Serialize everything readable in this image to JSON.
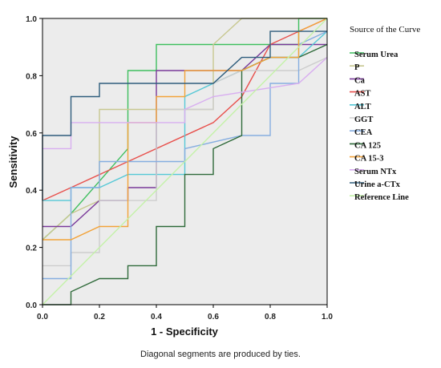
{
  "chart_data": {
    "type": "line",
    "title": "",
    "xlabel": "1 - Specificity",
    "ylabel": "Sensitivity",
    "xlim": [
      0,
      1
    ],
    "ylim": [
      0,
      1
    ],
    "x_ticks": [
      "0.0",
      "0.2",
      "0.4",
      "0.6",
      "0.8",
      "1.0"
    ],
    "y_ticks": [
      "0.0",
      "0.2",
      "0.4",
      "0.6",
      "0.8",
      "1.0"
    ],
    "grid": false,
    "background": "#ececec",
    "legend_title": "Source of the Curve",
    "legend_position": "right",
    "footnote": "Diagonal segments are produced by ties.",
    "series": [
      {
        "name": "Serum Urea",
        "color": "#3fbf5f",
        "points": [
          [
            0,
            0.227
          ],
          [
            0.1,
            0.318
          ],
          [
            0.3,
            0.545
          ],
          [
            0.3,
            0.818
          ],
          [
            0.4,
            0.818
          ],
          [
            0.4,
            0.909
          ],
          [
            0.8,
            0.909
          ],
          [
            0.9,
            0.909
          ],
          [
            0.9,
            1.0
          ],
          [
            1.0,
            1.0
          ]
        ]
      },
      {
        "name": "P",
        "color": "#c8c890",
        "points": [
          [
            0,
            0.227
          ],
          [
            0.1,
            0.318
          ],
          [
            0.2,
            0.364
          ],
          [
            0.2,
            0.682
          ],
          [
            0.4,
            0.682
          ],
          [
            0.6,
            0.682
          ],
          [
            0.6,
            0.909
          ],
          [
            0.7,
            1.0
          ],
          [
            1.0,
            1.0
          ]
        ]
      },
      {
        "name": "Ca",
        "color": "#7a3a9a",
        "points": [
          [
            0,
            0.273
          ],
          [
            0.1,
            0.273
          ],
          [
            0.2,
            0.364
          ],
          [
            0.3,
            0.364
          ],
          [
            0.3,
            0.409
          ],
          [
            0.4,
            0.409
          ],
          [
            0.4,
            0.818
          ],
          [
            0.6,
            0.818
          ],
          [
            0.7,
            0.818
          ],
          [
            0.8,
            0.909
          ],
          [
            1.0,
            0.909
          ]
        ]
      },
      {
        "name": "AST",
        "color": "#e8504c",
        "points": [
          [
            0,
            0.364
          ],
          [
            0.1,
            0.409
          ],
          [
            0.6,
            0.636
          ],
          [
            0.7,
            0.727
          ],
          [
            0.8,
            0.909
          ],
          [
            1.0,
            1.0
          ]
        ]
      },
      {
        "name": "ALT",
        "color": "#55c8d6",
        "points": [
          [
            0,
            0.364
          ],
          [
            0.1,
            0.364
          ],
          [
            0.1,
            0.409
          ],
          [
            0.2,
            0.409
          ],
          [
            0.3,
            0.455
          ],
          [
            0.5,
            0.455
          ],
          [
            0.5,
            0.727
          ],
          [
            0.6,
            0.773
          ],
          [
            0.8,
            0.864
          ],
          [
            0.9,
            0.864
          ],
          [
            1.0,
            0.955
          ]
        ]
      },
      {
        "name": "GGT",
        "color": "#cdcdcd",
        "points": [
          [
            0,
            0.136
          ],
          [
            0.1,
            0.136
          ],
          [
            0.1,
            0.182
          ],
          [
            0.2,
            0.182
          ],
          [
            0.2,
            0.364
          ],
          [
            0.4,
            0.364
          ],
          [
            0.4,
            0.682
          ],
          [
            0.6,
            0.682
          ],
          [
            0.6,
            0.773
          ],
          [
            0.7,
            0.818
          ],
          [
            0.9,
            0.818
          ],
          [
            1.0,
            0.864
          ]
        ]
      },
      {
        "name": "CEA",
        "color": "#86aee0",
        "points": [
          [
            0,
            0.091
          ],
          [
            0.1,
            0.091
          ],
          [
            0.1,
            0.409
          ],
          [
            0.2,
            0.409
          ],
          [
            0.2,
            0.5
          ],
          [
            0.4,
            0.5
          ],
          [
            0.5,
            0.5
          ],
          [
            0.5,
            0.545
          ],
          [
            0.7,
            0.591
          ],
          [
            0.8,
            0.591
          ],
          [
            0.8,
            0.773
          ],
          [
            0.9,
            0.773
          ],
          [
            0.9,
            0.909
          ],
          [
            1.0,
            0.955
          ]
        ]
      },
      {
        "name": "CA 125",
        "color": "#2f6a3a",
        "points": [
          [
            0,
            0
          ],
          [
            0.1,
            0
          ],
          [
            0.1,
            0.045
          ],
          [
            0.2,
            0.091
          ],
          [
            0.3,
            0.091
          ],
          [
            0.3,
            0.136
          ],
          [
            0.4,
            0.136
          ],
          [
            0.4,
            0.273
          ],
          [
            0.5,
            0.273
          ],
          [
            0.5,
            0.455
          ],
          [
            0.6,
            0.455
          ],
          [
            0.6,
            0.545
          ],
          [
            0.7,
            0.591
          ],
          [
            0.7,
            0.818
          ],
          [
            0.8,
            0.864
          ],
          [
            0.9,
            0.864
          ],
          [
            1.0,
            0.909
          ]
        ]
      },
      {
        "name": "CA 15-3",
        "color": "#f2a33a",
        "points": [
          [
            0,
            0.227
          ],
          [
            0.1,
            0.227
          ],
          [
            0.2,
            0.273
          ],
          [
            0.3,
            0.273
          ],
          [
            0.3,
            0.636
          ],
          [
            0.4,
            0.636
          ],
          [
            0.4,
            0.727
          ],
          [
            0.5,
            0.727
          ],
          [
            0.5,
            0.818
          ],
          [
            0.7,
            0.818
          ],
          [
            0.8,
            0.864
          ],
          [
            0.9,
            0.864
          ],
          [
            0.9,
            0.955
          ],
          [
            1.0,
            1.0
          ]
        ]
      },
      {
        "name": "Serum NTx",
        "color": "#d8aef0",
        "points": [
          [
            0,
            0.545
          ],
          [
            0.1,
            0.545
          ],
          [
            0.1,
            0.636
          ],
          [
            0.5,
            0.636
          ],
          [
            0.5,
            0.682
          ],
          [
            0.6,
            0.727
          ],
          [
            0.9,
            0.773
          ],
          [
            1.0,
            0.864
          ]
        ]
      },
      {
        "name": "Urine a-CTx",
        "color": "#2e5d7c",
        "points": [
          [
            0,
            0.364
          ],
          [
            0,
            0.591
          ],
          [
            0.1,
            0.591
          ],
          [
            0.1,
            0.727
          ],
          [
            0.2,
            0.727
          ],
          [
            0.2,
            0.773
          ],
          [
            0.6,
            0.773
          ],
          [
            0.7,
            0.864
          ],
          [
            0.8,
            0.864
          ],
          [
            0.8,
            0.955
          ],
          [
            1.0,
            0.955
          ]
        ]
      },
      {
        "name": "Reference Line",
        "color": "#c4f2a8",
        "points": [
          [
            0,
            0
          ],
          [
            1,
            1
          ]
        ]
      }
    ]
  }
}
